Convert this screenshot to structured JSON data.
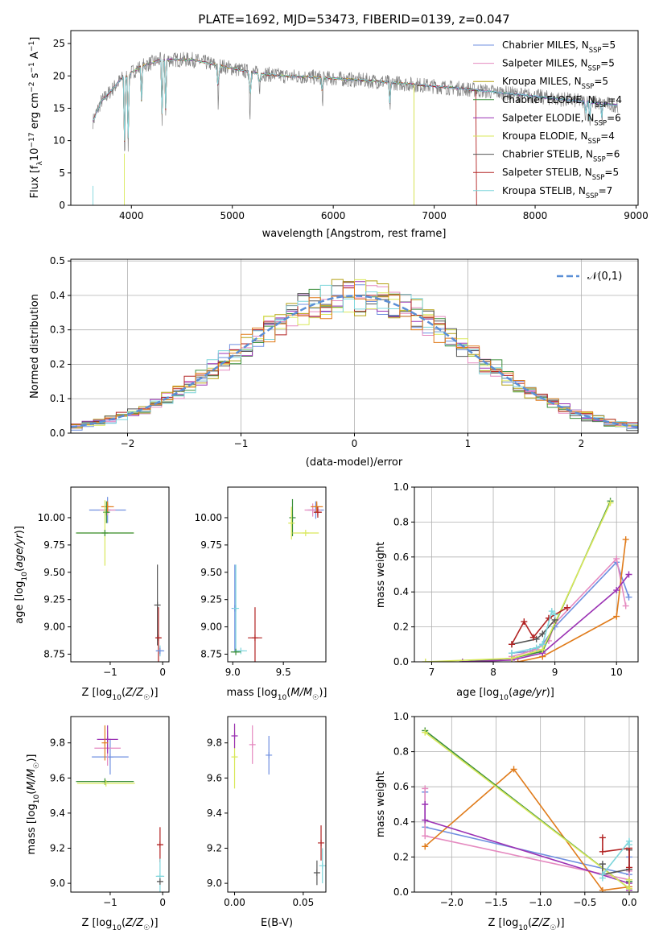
{
  "figure_title": "PLATE=1692, MJD=53473, FIBERID=0139, z=0.047",
  "legend_entries": [
    {
      "imf": "Chabrier",
      "lib": "MILES",
      "nssp": "5",
      "color": "#6f8fe0"
    },
    {
      "imf": "Salpeter",
      "lib": "MILES",
      "nssp": "5",
      "color": "#e58ac0"
    },
    {
      "imf": "Kroupa",
      "lib": "MILES",
      "nssp": "5",
      "color": "#b4a012"
    },
    {
      "imf": "Chabrier",
      "lib": "ELODIE",
      "nssp": "4",
      "color": "#3b8f3b"
    },
    {
      "imf": "Salpeter",
      "lib": "ELODIE",
      "nssp": "6",
      "color": "#9b32b4"
    },
    {
      "imf": "Kroupa",
      "lib": "ELODIE",
      "nssp": "4",
      "color": "#d9e85a"
    },
    {
      "imf": "Chabrier",
      "lib": "STELIB",
      "nssp": "6",
      "color": "#555555"
    },
    {
      "imf": "Salpeter",
      "lib": "STELIB",
      "nssp": "5",
      "color": "#b22222"
    },
    {
      "imf": "Kroupa",
      "lib": "STELIB",
      "nssp": "7",
      "color": "#7fd6dc"
    }
  ],
  "extra_colors": {
    "orange": "#e07b1a",
    "blue": "#5b8fd6",
    "data_gray": "#808080"
  },
  "chart_data": [
    {
      "id": "spectrum",
      "type": "line",
      "xlabel": "wavelength [Angstrom, rest frame]",
      "ylabel": "Flux [fλ10⁻¹⁷ erg cm⁻² s⁻¹ A⁻¹]",
      "xlim": [
        3400,
        9020
      ],
      "ylim": [
        0,
        27
      ],
      "xticks": [
        4000,
        5000,
        6000,
        7000,
        8000,
        9000
      ],
      "yticks": [
        0,
        5,
        10,
        15,
        20,
        25
      ],
      "legend": "top-right",
      "continuum": {
        "x": [
          3620,
          3700,
          3900,
          4100,
          4300,
          4600,
          4900,
          5200,
          5500,
          5800,
          6100,
          6400,
          6700,
          7000,
          7300,
          7600,
          7900,
          8200,
          8500,
          8800
        ],
        "y": [
          13,
          16,
          19.5,
          21.5,
          22.5,
          22.5,
          21.5,
          20.5,
          20,
          19.8,
          19.5,
          19.2,
          18.8,
          18.4,
          18,
          17.5,
          17,
          16.5,
          16,
          15.5
        ]
      },
      "absorption_lines": [
        {
          "x": 3934,
          "y": 7.5
        },
        {
          "x": 3969,
          "y": 9
        },
        {
          "x": 4102,
          "y": 15
        },
        {
          "x": 4304,
          "y": 13
        },
        {
          "x": 4340,
          "y": 14
        },
        {
          "x": 4861,
          "y": 15
        },
        {
          "x": 5175,
          "y": 13.5
        },
        {
          "x": 5270,
          "y": 17
        },
        {
          "x": 5893,
          "y": 15.5
        },
        {
          "x": 6563,
          "y": 14.5
        },
        {
          "x": 8500,
          "y": 13
        },
        {
          "x": 8542,
          "y": 12.5
        },
        {
          "x": 8662,
          "y": 13
        }
      ],
      "noise_amplitude": 1.2,
      "data_range": [
        3620,
        8820
      ],
      "model_ranges": [
        [
          3620,
          8820
        ],
        [
          3620,
          8820
        ],
        [
          3920,
          6800
        ],
        [
          3620,
          8820
        ],
        [
          3620,
          8820
        ],
        [
          3920,
          6800
        ],
        [
          3620,
          8820
        ],
        [
          3620,
          7420
        ],
        [
          3620,
          8820
        ]
      ]
    },
    {
      "id": "residuals",
      "type": "line",
      "xlabel": "(data-model)/error",
      "ylabel": "Normed distribution",
      "xlim": [
        -2.5,
        2.5
      ],
      "ylim": [
        0,
        0.505
      ],
      "xticks": [
        -2,
        -1,
        0,
        1,
        2
      ],
      "yticks": [
        0.0,
        0.1,
        0.2,
        0.3,
        0.4,
        0.5
      ],
      "grid": true,
      "bin_width": 0.1,
      "curve_name": "𝒩(0,1)",
      "legend": "top-right"
    },
    {
      "id": "age_vs_Z",
      "type": "scatter",
      "xlabel": "Z [log10(Z/Z☉)]",
      "ylabel": "age  [log10(age/yr)]",
      "xlim": [
        -1.75,
        0.12
      ],
      "ylim": [
        8.68,
        10.28
      ],
      "xticks": [
        -1,
        0
      ],
      "yticks": [
        8.75,
        9.0,
        9.25,
        9.5,
        9.75,
        10.0
      ],
      "points": [
        {
          "x": -1.05,
          "y": 10.07,
          "xerr": 0.35,
          "yerr": 0.12,
          "series": 0
        },
        {
          "x": -1.05,
          "y": 10.07,
          "xerr": 0.15,
          "yerr": 0.05,
          "series": 1
        },
        {
          "x": -1.05,
          "y": 10.1,
          "xerr": 0.12,
          "yerr": 0.05,
          "series": 9
        },
        {
          "x": -1.07,
          "y": 10.05,
          "xerr": 0.06,
          "yerr": 0.1,
          "series": 3
        },
        {
          "x": -1.1,
          "y": 9.86,
          "xerr": 0.55,
          "yerr": 0.3,
          "series": 5
        },
        {
          "x": -1.1,
          "y": 9.86,
          "xerr": 0.55,
          "yerr": 0.0,
          "series": 3
        },
        {
          "x": -0.1,
          "y": 9.2,
          "xerr": 0.0,
          "yerr": 0.37,
          "series": 6
        },
        {
          "x": -0.08,
          "y": 8.9,
          "xerr": 0.05,
          "yerr": 0.28,
          "series": 7
        },
        {
          "x": -0.05,
          "y": 8.78,
          "xerr": 0.05,
          "yerr": 0.05,
          "series": 8
        },
        {
          "x": -0.05,
          "y": 8.78,
          "xerr": 0.08,
          "yerr": 0.0,
          "series": 0
        }
      ]
    },
    {
      "id": "age_vs_mass",
      "type": "scatter",
      "xlabel": "mass [log10(M/M☉)]",
      "ylabel": "",
      "xlim": [
        8.95,
        9.92
      ],
      "ylim": [
        8.68,
        10.28
      ],
      "xticks": [
        9.0,
        9.5
      ],
      "yticks": [
        8.75,
        9.0,
        9.25,
        9.5,
        9.75,
        10.0
      ],
      "points": [
        {
          "x": 9.82,
          "y": 10.07,
          "xerr": 0.08,
          "yerr": 0.08,
          "series": 0
        },
        {
          "x": 9.79,
          "y": 10.07,
          "xerr": 0.08,
          "yerr": 0.06,
          "series": 1
        },
        {
          "x": 9.83,
          "y": 10.1,
          "xerr": 0.06,
          "yerr": 0.05,
          "series": 9
        },
        {
          "x": 9.84,
          "y": 10.05,
          "xerr": 0.04,
          "yerr": 0.05,
          "series": 7
        },
        {
          "x": 9.59,
          "y": 10.0,
          "xerr": 0.0,
          "yerr": 0.17,
          "series": 3
        },
        {
          "x": 9.72,
          "y": 9.86,
          "xerr": 0.13,
          "yerr": 0.0,
          "series": 5
        },
        {
          "x": 9.58,
          "y": 9.95,
          "xerr": 0.0,
          "yerr": 0.15,
          "series": 5
        },
        {
          "x": 9.02,
          "y": 9.17,
          "xerr": 0.0,
          "yerr": 0.4,
          "series": 0
        },
        {
          "x": 9.03,
          "y": 9.17,
          "xerr": 0.0,
          "yerr": 0.4,
          "series": 8
        },
        {
          "x": 9.22,
          "y": 8.9,
          "xerr": 0.07,
          "yerr": 0.28,
          "series": 7
        },
        {
          "x": 9.08,
          "y": 8.78,
          "xerr": 0.06,
          "yerr": 0.0,
          "series": 8
        },
        {
          "x": 9.03,
          "y": 8.77,
          "xerr": 0.05,
          "yerr": 0.0,
          "series": 3
        }
      ]
    },
    {
      "id": "weight_vs_age",
      "type": "line",
      "xlabel": "age  [log10(age/yr)]",
      "ylabel": "mass weight",
      "xlim": [
        6.72,
        10.35
      ],
      "ylim": [
        0,
        1.0
      ],
      "xticks": [
        7,
        8,
        9,
        10
      ],
      "yticks": [
        0.0,
        0.2,
        0.4,
        0.6,
        0.8,
        1.0
      ],
      "grid": true,
      "series": [
        {
          "c": 0,
          "x": [
            8.3,
            8.6,
            8.8,
            9.0,
            10.0,
            10.2
          ],
          "y": [
            0.05,
            0.06,
            0.1,
            0.2,
            0.57,
            0.37
          ]
        },
        {
          "c": 1,
          "x": [
            8.3,
            8.7,
            8.9,
            9.0,
            10.0,
            10.15
          ],
          "y": [
            0.03,
            0.07,
            0.12,
            0.22,
            0.59,
            0.32
          ]
        },
        {
          "c": 9,
          "x": [
            8.4,
            8.8,
            10.0,
            10.15
          ],
          "y": [
            0.0,
            0.03,
            0.26,
            0.7
          ]
        },
        {
          "c": 3,
          "x": [
            7.5,
            8.3,
            8.8,
            9.9
          ],
          "y": [
            0.0,
            0.02,
            0.06,
            0.92
          ]
        },
        {
          "c": 4,
          "x": [
            7.5,
            8.3,
            8.8,
            10.0,
            10.2
          ],
          "y": [
            0.0,
            0.01,
            0.05,
            0.41,
            0.5
          ]
        },
        {
          "c": 5,
          "x": [
            6.9,
            8.3,
            8.8,
            9.9
          ],
          "y": [
            0.0,
            0.02,
            0.07,
            0.91
          ]
        },
        {
          "c": 6,
          "x": [
            8.3,
            8.7,
            8.8,
            9.0
          ],
          "y": [
            0.1,
            0.13,
            0.16,
            0.24
          ]
        },
        {
          "c": 7,
          "x": [
            8.3,
            8.5,
            8.65,
            8.9,
            9.2
          ],
          "y": [
            0.1,
            0.23,
            0.14,
            0.25,
            0.31
          ]
        },
        {
          "c": 8,
          "x": [
            8.3,
            8.7,
            8.8,
            8.95,
            9.0
          ],
          "y": [
            0.05,
            0.08,
            0.1,
            0.29,
            0.27
          ]
        }
      ]
    },
    {
      "id": "mass_vs_Z",
      "type": "scatter",
      "xlabel": "Z [log10(Z/Z☉)]",
      "ylabel": "mass [log10(M/M☉)]",
      "xlim": [
        -1.75,
        0.12
      ],
      "ylim": [
        8.95,
        9.95
      ],
      "xticks": [
        -1,
        0
      ],
      "yticks": [
        9.0,
        9.2,
        9.4,
        9.6,
        9.8
      ],
      "points": [
        {
          "x": -1.0,
          "y": 9.72,
          "xerr": 0.35,
          "yerr": 0.1,
          "series": 0
        },
        {
          "x": -1.05,
          "y": 9.77,
          "xerr": 0.25,
          "yerr": 0.1,
          "series": 1
        },
        {
          "x": -1.05,
          "y": 9.82,
          "xerr": 0.2,
          "yerr": 0.08,
          "series": 4
        },
        {
          "x": -1.1,
          "y": 9.8,
          "xerr": 0.0,
          "yerr": 0.1,
          "series": 9
        },
        {
          "x": -1.1,
          "y": 9.58,
          "xerr": 0.55,
          "yerr": 0.0,
          "series": 3
        },
        {
          "x": -1.08,
          "y": 9.57,
          "xerr": 0.55,
          "yerr": 0.0,
          "series": 5
        },
        {
          "x": -0.05,
          "y": 9.22,
          "xerr": 0.06,
          "yerr": 0.1,
          "series": 7
        },
        {
          "x": -0.05,
          "y": 9.04,
          "xerr": 0.08,
          "yerr": 0.1,
          "series": 8
        },
        {
          "x": -0.05,
          "y": 9.01,
          "xerr": 0.06,
          "yerr": 0.0,
          "series": 6
        }
      ]
    },
    {
      "id": "mass_vs_ebv",
      "type": "scatter",
      "xlabel": "E(B-V)",
      "ylabel": "",
      "xlim": [
        -0.005,
        0.0665
      ],
      "ylim": [
        8.95,
        9.95
      ],
      "xticks": [
        0.0,
        0.05
      ],
      "yticks": [
        9.0,
        9.2,
        9.4,
        9.6,
        9.8
      ],
      "points": [
        {
          "x": 0.0,
          "y": 9.72,
          "xerr": 0.0,
          "yerr": 0.18,
          "series": 5
        },
        {
          "x": 0.0,
          "y": 9.84,
          "xerr": 0.0,
          "yerr": 0.07,
          "series": 4
        },
        {
          "x": 0.013,
          "y": 9.79,
          "xerr": 0.0,
          "yerr": 0.11,
          "series": 1
        },
        {
          "x": 0.025,
          "y": 9.73,
          "xerr": 0.0,
          "yerr": 0.11,
          "series": 0
        },
        {
          "x": 0.06,
          "y": 9.06,
          "xerr": 0.0,
          "yerr": 0.07,
          "series": 6
        },
        {
          "x": 0.063,
          "y": 9.23,
          "xerr": 0.0,
          "yerr": 0.1,
          "series": 7
        },
        {
          "x": 0.064,
          "y": 9.1,
          "xerr": 0.0,
          "yerr": 0.1,
          "series": 8
        }
      ]
    },
    {
      "id": "weight_vs_Z",
      "type": "line",
      "xlabel": "Z [log10(Z/Z☉)]",
      "ylabel": "mass weight",
      "xlim": [
        -2.42,
        0.1
      ],
      "ylim": [
        0,
        1.0
      ],
      "xticks": [
        -2.0,
        -1.5,
        -1.0,
        -0.5,
        0.0
      ],
      "yticks": [
        0.0,
        0.2,
        0.4,
        0.6,
        0.8,
        1.0
      ],
      "grid": true,
      "series": [
        {
          "c": 0,
          "x": [
            -2.3,
            -2.3,
            0.0,
            0.0,
            0.0
          ],
          "y": [
            0.57,
            0.37,
            0.1,
            0.06,
            0.2
          ]
        },
        {
          "c": 1,
          "x": [
            -2.3,
            -2.3,
            0.0,
            0.0
          ],
          "y": [
            0.59,
            0.32,
            0.07,
            0.12
          ]
        },
        {
          "c": 9,
          "x": [
            -2.3,
            -1.3,
            -0.3,
            0.0
          ],
          "y": [
            0.26,
            0.7,
            0.01,
            0.03
          ]
        },
        {
          "c": 3,
          "x": [
            -2.3,
            0.0,
            0.0
          ],
          "y": [
            0.92,
            0.02,
            0.06
          ]
        },
        {
          "c": 4,
          "x": [
            -2.3,
            -2.3,
            0.0,
            0.0
          ],
          "y": [
            0.5,
            0.41,
            0.05,
            0.01
          ]
        },
        {
          "c": 5,
          "x": [
            -2.3,
            0.0,
            0.0
          ],
          "y": [
            0.91,
            0.02,
            0.07
          ]
        },
        {
          "c": 6,
          "x": [
            -0.3,
            -0.3,
            0.0,
            0.0
          ],
          "y": [
            0.16,
            0.1,
            0.13,
            0.24
          ]
        },
        {
          "c": 7,
          "x": [
            -0.3,
            -0.3,
            0.0,
            0.0
          ],
          "y": [
            0.31,
            0.23,
            0.25,
            0.14
          ]
        },
        {
          "c": 8,
          "x": [
            -0.3,
            -0.3,
            0.0,
            0.0
          ],
          "y": [
            0.08,
            0.1,
            0.29,
            0.27
          ]
        }
      ]
    }
  ]
}
